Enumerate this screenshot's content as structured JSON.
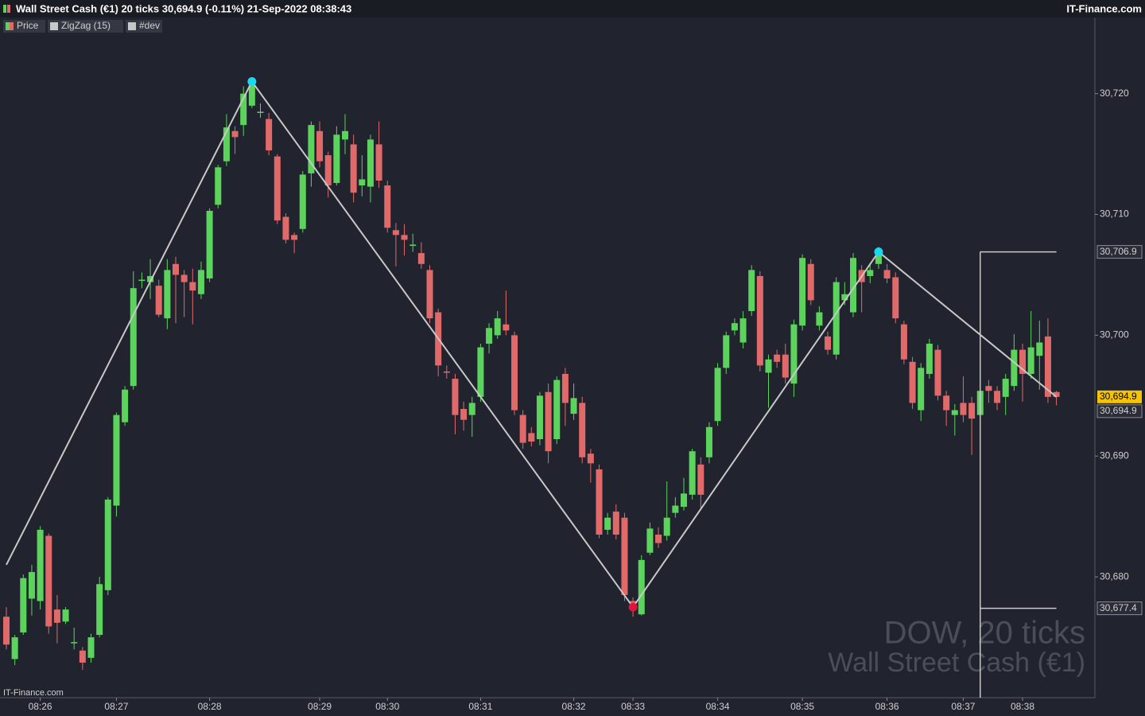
{
  "title": "Wall Street Cash (€1) 20 ticks 30,694.9 (-0.11%) 21-Sep-2022 08:38:43",
  "brand": "IT-Finance.com",
  "footer_brand": "IT-Finance.com",
  "watermark": {
    "line1": "DOW, 20 ticks",
    "line2": "Wall Street Cash (€1)"
  },
  "chart_data": {
    "type": "candlestick",
    "up_color": "#5cd35c",
    "down_color": "#e06a6a",
    "ylim": [
      30670,
      30726.3
    ],
    "yticks": [
      {
        "value": 30680,
        "label": "30,680"
      },
      {
        "value": 30690,
        "label": "30,690"
      },
      {
        "value": 30700,
        "label": "30,700"
      },
      {
        "value": 30710,
        "label": "30,710"
      },
      {
        "value": 30720,
        "label": "30,720"
      }
    ],
    "xticks": [
      {
        "value": 4,
        "label": "08:26"
      },
      {
        "value": 13,
        "label": "08:27"
      },
      {
        "value": 24,
        "label": "08:28"
      },
      {
        "value": 37,
        "label": "08:29"
      },
      {
        "value": 45,
        "label": "08:30"
      },
      {
        "value": 56,
        "label": "08:31"
      },
      {
        "value": 67,
        "label": "08:32"
      },
      {
        "value": 74,
        "label": "08:33"
      },
      {
        "value": 84,
        "label": "08:34"
      },
      {
        "value": 94,
        "label": "08:35"
      },
      {
        "value": 104,
        "label": "08:36"
      },
      {
        "value": 113,
        "label": "08:37"
      },
      {
        "value": 120,
        "label": "08:38"
      }
    ],
    "legend": [
      {
        "name": "Price"
      },
      {
        "name": "ZigZag (15)",
        "color": "#c8c8c8"
      },
      {
        "name": "#dev",
        "color": "#c8c8c8"
      }
    ],
    "open": [
      30676.7,
      30673.2,
      30675.4,
      30678.2,
      30678.0,
      30683.4,
      30677.3,
      30676.3,
      30674.5,
      30673.9,
      30673.3,
      30675.2,
      30678.9,
      30685.9,
      30692.8,
      30695.8,
      30704.5,
      30704.4,
      30704.1,
      30701.4,
      30705.9,
      30705.0,
      30704.4,
      30703.4,
      30704.7,
      30710.8,
      30714.4,
      30716.9,
      30717.4,
      30719.0,
      30718.4,
      30717.9,
      30714.8,
      30709.8,
      30708.3,
      30708.8,
      30713.4,
      30716.9,
      30714.9,
      30712.6,
      30716.2,
      30715.8,
      30712.4,
      30712.3,
      30715.8,
      30712.4,
      30708.7,
      30708.3,
      30707.4,
      30706.8,
      30705.4,
      30701.9,
      30697.0,
      30696.4,
      30693.9,
      30693.4,
      30694.9,
      30699.3,
      30700.0,
      30700.9,
      30700.0,
      30693.4,
      30691.9,
      30691.4,
      30695.3,
      30691.4,
      30696.8,
      30693.5,
      30694.4,
      30690.2,
      30688.9,
      30683.9,
      30685.4,
      30684.9,
      30678.0,
      30676.9,
      30682.0,
      30683.5,
      30683.4,
      30685.3,
      30685.8,
      30686.8,
      30689.3,
      30689.9,
      30692.9,
      30697.3,
      30700.4,
      30699.4,
      30702.0,
      30704.9,
      30696.9,
      30698.4,
      30698.4,
      30696.0,
      30700.8,
      30705.9,
      30700.8,
      30699.9,
      30698.4,
      30702.9,
      30701.9,
      30705.4,
      30704.9,
      30705.9,
      30705.4,
      30704.8,
      30700.9,
      30697.8,
      30693.8,
      30696.8,
      30698.8,
      30695.0,
      30693.4,
      30694.4,
      30694.4,
      30693.4,
      30695.8,
      30695.4,
      30694.9,
      30695.8,
      30698.8,
      30696.8,
      30698.3,
      30699.9,
      30695.3
    ],
    "high": [
      30677.5,
      30675.2,
      30680.2,
      30681.0,
      30684.2,
      30683.6,
      30678.5,
      30677.5,
      30675.8,
      30674.2,
      30675.3,
      30680.0,
      30686.6,
      30693.6,
      30695.8,
      30705.3,
      30705.2,
      30706.3,
      30704.6,
      30706.3,
      30706.5,
      30705.4,
      30705.5,
      30706.1,
      30710.5,
      30714.1,
      30718.3,
      30717.3,
      30720.6,
      30721.0,
      30719.2,
      30718.4,
      30715.0,
      30710.1,
      30708.5,
      30713.6,
      30717.7,
      30717.7,
      30715.2,
      30717.3,
      30718.3,
      30716.6,
      30714.9,
      30716.6,
      30717.7,
      30712.8,
      30709.3,
      30709.2,
      30708.4,
      30707.7,
      30705.8,
      30702.2,
      30697.5,
      30696.8,
      30694.5,
      30694.9,
      30699.3,
      30701.0,
      30702.0,
      30703.7,
      30700.3,
      30693.8,
      30692.4,
      30695.3,
      30696.0,
      30696.6,
      30697.3,
      30696.0,
      30694.9,
      30690.6,
      30689.3,
      30685.3,
      30686.0,
      30685.3,
      30678.3,
      30681.8,
      30684.5,
      30684.1,
      30687.9,
      30686.6,
      30688.2,
      30690.6,
      30689.9,
      30692.8,
      30697.7,
      30700.3,
      30701.4,
      30702.0,
      30705.8,
      30705.3,
      30698.4,
      30698.8,
      30699.3,
      30701.3,
      30706.7,
      30706.3,
      30702.4,
      30700.3,
      30704.8,
      30704.4,
      30706.8,
      30705.8,
      30705.9,
      30707.3,
      30705.9,
      30705.2,
      30701.2,
      30698.2,
      30697.7,
      30699.7,
      30699.2,
      30695.4,
      30694.3,
      30696.6,
      30694.9,
      30697.3,
      30696.3,
      30695.8,
      30696.8,
      30700.1,
      30699.3,
      30702.0,
      30701.2,
      30701.4,
      30695.4
    ],
    "low": [
      30674.0,
      30672.7,
      30675.2,
      30676.8,
      30677.3,
      30675.3,
      30674.5,
      30676.1,
      30674.0,
      30672.3,
      30672.9,
      30675.0,
      30678.5,
      30685.0,
      30692.5,
      30695.5,
      30703.9,
      30703.0,
      30701.5,
      30700.5,
      30701.0,
      30701.5,
      30700.9,
      30703.0,
      30704.4,
      30710.5,
      30714.0,
      30715.0,
      30716.5,
      30718.8,
      30718.0,
      30714.9,
      30709.2,
      30707.6,
      30706.8,
      30708.5,
      30712.3,
      30713.9,
      30711.4,
      30712.4,
      30715.0,
      30711.0,
      30711.5,
      30711.0,
      30712.2,
      30708.5,
      30705.7,
      30706.6,
      30706.9,
      30705.5,
      30701.0,
      30696.6,
      30696.4,
      30691.8,
      30692.1,
      30691.6,
      30694.5,
      30698.5,
      30699.7,
      30700.0,
      30693.4,
      30690.6,
      30690.8,
      30690.9,
      30689.4,
      30691.0,
      30692.5,
      30693.0,
      30689.4,
      30687.8,
      30683.2,
      30683.5,
      30683.1,
      30678.0,
      30676.7,
      30676.8,
      30681.8,
      30682.4,
      30683.0,
      30684.9,
      30685.5,
      30686.4,
      30685.7,
      30689.4,
      30692.5,
      30696.8,
      30700.0,
      30698.9,
      30701.6,
      30697.0,
      30694.0,
      30697.3,
      30696.0,
      30694.9,
      30700.4,
      30702.5,
      30700.4,
      30698.4,
      30698.0,
      30702.5,
      30701.5,
      30701.9,
      30704.3,
      30705.5,
      30704.3,
      30701.0,
      30697.6,
      30693.9,
      30692.9,
      30696.4,
      30694.6,
      30692.5,
      30691.7,
      30692.8,
      30690.1,
      30693.0,
      30694.4,
      30693.8,
      30693.4,
      30695.4,
      30694.5,
      30696.4,
      30695.5,
      30694.4,
      30694.2
    ],
    "close": [
      30674.4,
      30675.0,
      30679.9,
      30680.4,
      30683.9,
      30675.9,
      30676.2,
      30677.3,
      30674.6,
      30672.9,
      30675.0,
      30679.4,
      30686.4,
      30693.4,
      30695.5,
      30703.9,
      30704.6,
      30704.9,
      30701.7,
      30705.4,
      30705.0,
      30704.4,
      30703.7,
      30705.4,
      30710.3,
      30713.9,
      30717.2,
      30716.4,
      30720.0,
      30720.7,
      30718.5,
      30715.3,
      30709.5,
      30707.9,
      30707.9,
      30713.3,
      30717.4,
      30714.4,
      30712.4,
      30716.6,
      30716.9,
      30711.8,
      30712.9,
      30716.2,
      30712.8,
      30708.9,
      30708.3,
      30707.9,
      30707.5,
      30705.9,
      30701.4,
      30697.5,
      30696.9,
      30693.4,
      30693.0,
      30694.4,
      30699.0,
      30700.6,
      30701.4,
      30700.4,
      30693.8,
      30691.1,
      30691.2,
      30695.0,
      30690.4,
      30696.3,
      30694.4,
      30694.8,
      30689.9,
      30689.4,
      30683.5,
      30684.9,
      30683.5,
      30678.5,
      30677.4,
      30681.4,
      30684.0,
      30682.8,
      30684.9,
      30685.9,
      30686.9,
      30690.4,
      30686.8,
      30692.4,
      30697.3,
      30700.0,
      30701.0,
      30701.4,
      30705.4,
      30697.5,
      30698.0,
      30697.8,
      30696.5,
      30700.9,
      30706.4,
      30702.9,
      30701.9,
      30698.8,
      30704.4,
      30703.4,
      30706.4,
      30704.4,
      30705.4,
      30706.7,
      30704.7,
      30701.4,
      30698.0,
      30694.4,
      30697.3,
      30699.3,
      30695.0,
      30693.8,
      30693.8,
      30693.4,
      30693.1,
      30695.4,
      30695.4,
      30694.4,
      30696.4,
      30698.8,
      30696.8,
      30699.0,
      30699.4,
      30694.9,
      30694.9
    ],
    "zigzag": {
      "color": "#c8c8c8",
      "x": [
        0,
        29,
        74,
        103,
        124
      ],
      "values": [
        30681.0,
        30721.0,
        30677.5,
        30706.9,
        30694.9
      ],
      "marker_colors": [
        null,
        "#19d8f5",
        "#e0143c",
        "#19d8f5",
        null
      ]
    },
    "dev": {
      "color": "#c8c8c8",
      "start": 115,
      "end": 124,
      "upper": {
        "value": 30706.9,
        "label": "30,706.9"
      },
      "lower": {
        "value": 30677.4,
        "label": "30,677.4"
      }
    },
    "last_price": {
      "value": 30694.9,
      "label": "30,694.9",
      "color": "#f5c400"
    }
  }
}
